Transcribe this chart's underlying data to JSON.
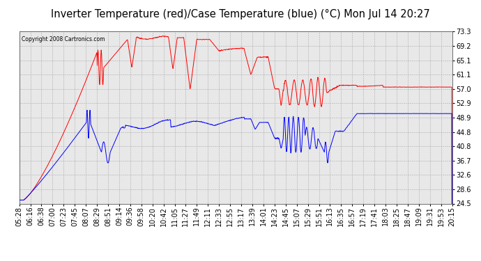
{
  "title": "Inverter Temperature (red)/Case Temperature (blue) (°C) Mon Jul 14 20:27",
  "copyright": "Copyright 2008 Cartronics.com",
  "ylabel_right_ticks": [
    24.5,
    28.6,
    32.6,
    36.7,
    40.8,
    44.8,
    48.9,
    52.9,
    57.0,
    61.1,
    65.1,
    69.2,
    73.3
  ],
  "xlabels": [
    "05:28",
    "06:16",
    "06:38",
    "07:00",
    "07:23",
    "07:45",
    "08:07",
    "08:29",
    "08:51",
    "09:14",
    "09:36",
    "09:58",
    "10:20",
    "10:42",
    "11:05",
    "11:27",
    "11:49",
    "12:11",
    "12:33",
    "12:55",
    "13:17",
    "13:39",
    "14:01",
    "14:23",
    "14:45",
    "15:07",
    "15:29",
    "15:51",
    "16:13",
    "16:35",
    "16:57",
    "17:19",
    "17:41",
    "18:03",
    "18:25",
    "18:47",
    "19:09",
    "19:31",
    "19:53",
    "20:15"
  ],
  "background_color": "#ffffff",
  "plot_bg_color": "#e8e8e8",
  "grid_color": "#aaaaaa",
  "red_color": "#ff0000",
  "blue_color": "#0000ff",
  "title_fontsize": 10.5,
  "tick_fontsize": 7,
  "ymin": 24.5,
  "ymax": 73.3
}
